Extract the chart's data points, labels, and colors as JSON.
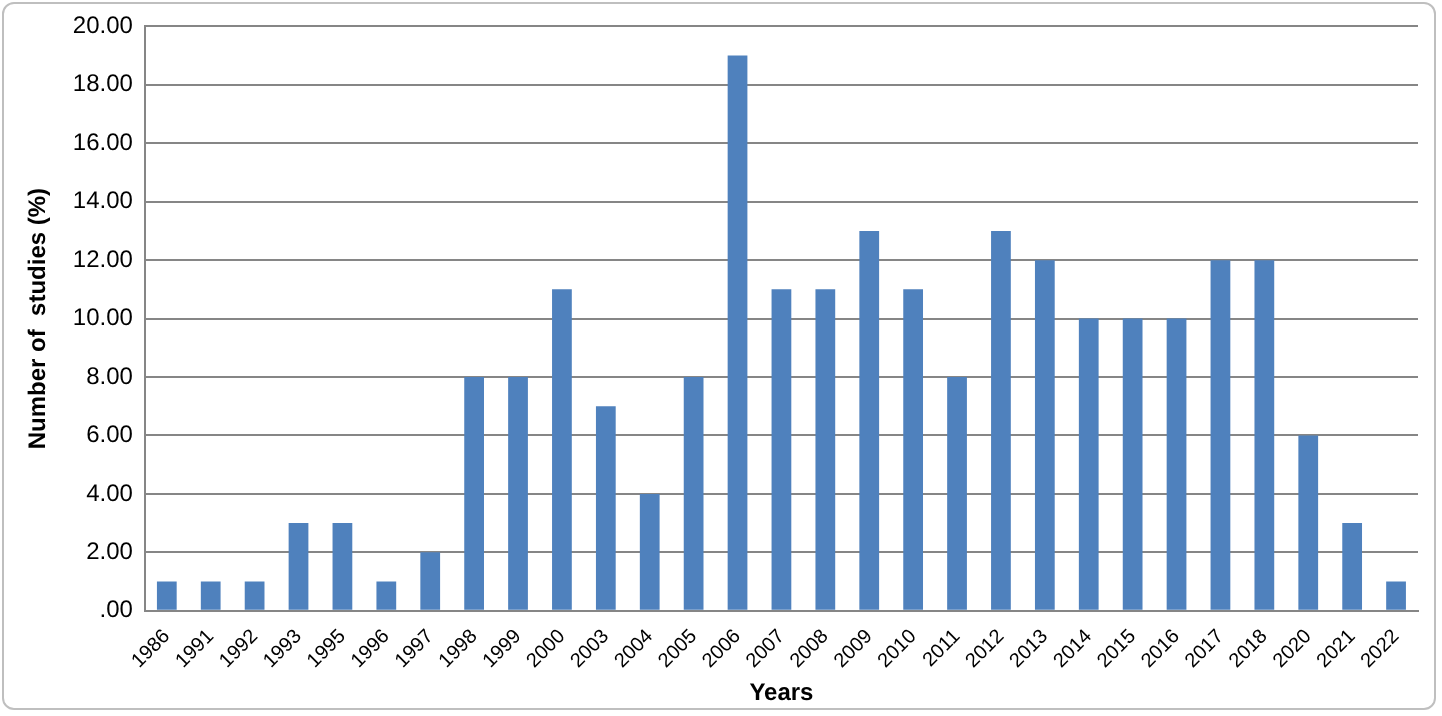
{
  "chart_data": {
    "type": "bar",
    "xlabel": "Years",
    "ylabel": "Number of  studies (%)",
    "categories": [
      "1986",
      "1991",
      "1992",
      "1993",
      "1995",
      "1996",
      "1997",
      "1998",
      "1999",
      "2000",
      "2003",
      "2004",
      "2005",
      "2006",
      "2007",
      "2008",
      "2009",
      "2010",
      "2011",
      "2012",
      "2013",
      "2014",
      "2015",
      "2016",
      "2017",
      "2018",
      "2020",
      "2021",
      "2022"
    ],
    "values": [
      1,
      1,
      1,
      3,
      3,
      1,
      2,
      8,
      8,
      11,
      7,
      4,
      8,
      19,
      11,
      11,
      13,
      11,
      8,
      13,
      12,
      10,
      10,
      10,
      12,
      12,
      6,
      3,
      1
    ],
    "color": "#4f81bd",
    "ylim": [
      0,
      20
    ],
    "yticks": [
      {
        "value": 0,
        "label": ".00"
      },
      {
        "value": 2,
        "label": "2.00"
      },
      {
        "value": 4,
        "label": "4.00"
      },
      {
        "value": 6,
        "label": "6.00"
      },
      {
        "value": 8,
        "label": "8.00"
      },
      {
        "value": 10,
        "label": "10.00"
      },
      {
        "value": 12,
        "label": "12.00"
      },
      {
        "value": 14,
        "label": "14.00"
      },
      {
        "value": 16,
        "label": "16.00"
      },
      {
        "value": 18,
        "label": "18.00"
      },
      {
        "value": 20,
        "label": "20.00"
      }
    ],
    "grid": "y",
    "legend": false
  }
}
